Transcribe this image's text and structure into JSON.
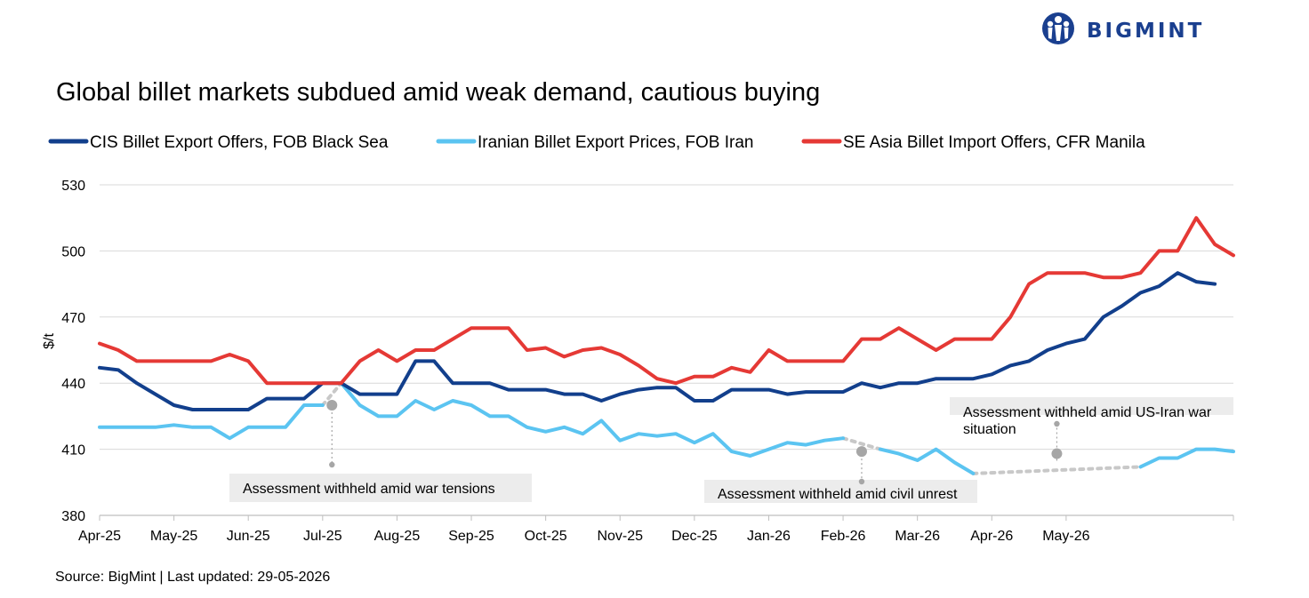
{
  "brand": {
    "name": "BIGMINT",
    "color": "#1a3f8f",
    "logo_icon": "bigmint-people-logo-icon"
  },
  "footer": {
    "source": "Source: BigMint | Last updated: 29-05-2026"
  },
  "chart_data": {
    "type": "line",
    "title": "Global billet markets subdued amid weak demand, cautious buying",
    "ylabel": "$/t",
    "xlabel": "",
    "ylim": [
      380,
      530
    ],
    "yticks": [
      380,
      410,
      440,
      470,
      500,
      530
    ],
    "grid": "horizontal",
    "legend_position": "top-left",
    "x_tick_labels": [
      "Apr-25",
      "May-25",
      "Jun-25",
      "Jul-25",
      "Aug-25",
      "Sep-25",
      "Oct-25",
      "Nov-25",
      "Dec-25",
      "Jan-26",
      "Feb-26",
      "Mar-26",
      "Apr-26",
      "May-26"
    ],
    "x_tick_index": [
      0,
      4,
      8,
      12,
      16,
      20,
      24,
      28,
      32,
      36,
      40,
      44,
      48,
      52
    ],
    "series": [
      {
        "name": "CIS Billet Export Offers, FOB Black Sea",
        "color": "#123f8c",
        "points": [
          [
            0,
            447
          ],
          [
            1,
            446
          ],
          [
            2,
            440
          ],
          [
            3,
            435
          ],
          [
            4,
            430
          ],
          [
            5,
            428
          ],
          [
            6,
            428
          ],
          [
            7,
            428
          ],
          [
            8,
            428
          ],
          [
            9,
            433
          ],
          [
            10,
            433
          ],
          [
            11,
            433
          ],
          [
            12,
            440
          ],
          [
            13,
            440
          ],
          [
            14,
            435
          ],
          [
            15,
            435
          ],
          [
            16,
            435
          ],
          [
            17,
            450
          ],
          [
            18,
            450
          ],
          [
            19,
            440
          ],
          [
            20,
            440
          ],
          [
            21,
            440
          ],
          [
            22,
            437
          ],
          [
            23,
            437
          ],
          [
            24,
            437
          ],
          [
            25,
            435
          ],
          [
            26,
            435
          ],
          [
            27,
            432
          ],
          [
            28,
            435
          ],
          [
            29,
            437
          ],
          [
            30,
            438
          ],
          [
            31,
            438
          ],
          [
            32,
            432
          ],
          [
            33,
            432
          ],
          [
            34,
            437
          ],
          [
            35,
            437
          ],
          [
            36,
            437
          ],
          [
            37,
            435
          ],
          [
            38,
            436
          ],
          [
            39,
            436
          ],
          [
            40,
            436
          ],
          [
            41,
            440
          ],
          [
            42,
            438
          ],
          [
            43,
            440
          ],
          [
            44,
            440
          ],
          [
            45,
            442
          ],
          [
            46,
            442
          ],
          [
            47,
            442
          ],
          [
            48,
            444
          ],
          [
            49,
            448
          ],
          [
            50,
            450
          ],
          [
            51,
            455
          ],
          [
            52,
            458
          ],
          [
            53,
            460
          ],
          [
            54,
            470
          ],
          [
            55,
            475
          ],
          [
            56,
            481
          ],
          [
            57,
            484
          ],
          [
            58,
            490
          ],
          [
            59,
            486
          ],
          [
            60,
            485
          ]
        ]
      },
      {
        "name": "Iranian Billet Export Prices, FOB Iran",
        "color": "#5bc4f1",
        "segments": [
          [
            [
              0,
              420
            ],
            [
              1,
              420
            ],
            [
              2,
              420
            ],
            [
              3,
              420
            ],
            [
              4,
              421
            ],
            [
              5,
              420
            ],
            [
              6,
              420
            ],
            [
              7,
              415
            ],
            [
              8,
              420
            ],
            [
              9,
              420
            ],
            [
              10,
              420
            ],
            [
              11,
              430
            ],
            [
              12,
              430
            ]
          ],
          [
            [
              13,
              440
            ],
            [
              14,
              430
            ],
            [
              15,
              425
            ],
            [
              16,
              425
            ],
            [
              17,
              432
            ],
            [
              18,
              428
            ],
            [
              19,
              432
            ],
            [
              20,
              430
            ],
            [
              21,
              425
            ],
            [
              22,
              425
            ],
            [
              23,
              420
            ],
            [
              24,
              418
            ],
            [
              25,
              420
            ],
            [
              26,
              417
            ],
            [
              27,
              423
            ],
            [
              28,
              414
            ],
            [
              29,
              417
            ],
            [
              30,
              416
            ],
            [
              31,
              417
            ],
            [
              32,
              413
            ],
            [
              33,
              417
            ],
            [
              34,
              409
            ],
            [
              35,
              407
            ],
            [
              36,
              410
            ],
            [
              37,
              413
            ],
            [
              38,
              412
            ],
            [
              39,
              414
            ],
            [
              40,
              415
            ]
          ],
          [
            [
              42,
              410
            ],
            [
              43,
              408
            ],
            [
              44,
              405
            ],
            [
              45,
              410
            ],
            [
              46,
              404
            ],
            [
              47,
              399
            ]
          ],
          [
            [
              56,
              402
            ],
            [
              57,
              406
            ],
            [
              58,
              406
            ],
            [
              59,
              410
            ],
            [
              60,
              410
            ],
            [
              61,
              409
            ]
          ]
        ],
        "dotted_gaps": [
          [
            [
              12,
              430
            ],
            [
              13,
              440
            ]
          ],
          [
            [
              40,
              415
            ],
            [
              42,
              410
            ]
          ],
          [
            [
              47,
              399
            ],
            [
              56,
              402
            ]
          ]
        ]
      },
      {
        "name": "SE Asia Billet Import Offers, CFR Manila",
        "color": "#e53935",
        "points": [
          [
            0,
            458
          ],
          [
            1,
            455
          ],
          [
            2,
            450
          ],
          [
            3,
            450
          ],
          [
            4,
            450
          ],
          [
            5,
            450
          ],
          [
            6,
            450
          ],
          [
            7,
            453
          ],
          [
            8,
            450
          ],
          [
            9,
            440
          ],
          [
            10,
            440
          ],
          [
            11,
            440
          ],
          [
            12,
            440
          ],
          [
            13,
            440
          ],
          [
            14,
            450
          ],
          [
            15,
            455
          ],
          [
            16,
            450
          ],
          [
            17,
            455
          ],
          [
            18,
            455
          ],
          [
            19,
            460
          ],
          [
            20,
            465
          ],
          [
            21,
            465
          ],
          [
            22,
            465
          ],
          [
            23,
            455
          ],
          [
            24,
            456
          ],
          [
            25,
            452
          ],
          [
            26,
            455
          ],
          [
            27,
            456
          ],
          [
            28,
            453
          ],
          [
            29,
            448
          ],
          [
            30,
            442
          ],
          [
            31,
            440
          ],
          [
            32,
            443
          ],
          [
            33,
            443
          ],
          [
            34,
            447
          ],
          [
            35,
            445
          ],
          [
            36,
            455
          ],
          [
            37,
            450
          ],
          [
            38,
            450
          ],
          [
            39,
            450
          ],
          [
            40,
            450
          ],
          [
            41,
            460
          ],
          [
            42,
            460
          ],
          [
            43,
            465
          ],
          [
            44,
            460
          ],
          [
            45,
            455
          ],
          [
            46,
            460
          ],
          [
            47,
            460
          ],
          [
            48,
            460
          ],
          [
            49,
            470
          ],
          [
            50,
            485
          ],
          [
            51,
            490
          ],
          [
            52,
            490
          ],
          [
            53,
            490
          ],
          [
            54,
            488
          ],
          [
            55,
            488
          ],
          [
            56,
            490
          ],
          [
            57,
            500
          ],
          [
            58,
            500
          ],
          [
            59,
            515
          ],
          [
            60,
            503
          ],
          [
            61,
            498
          ]
        ]
      }
    ],
    "annotations": [
      {
        "text": "Assessment withheld amid  war tensions",
        "anchor": [
          12.5,
          430
        ]
      },
      {
        "text": "Assessment withheld amid civil unrest",
        "anchor": [
          41,
          409
        ]
      },
      {
        "text_lines": [
          "Assessment withheld amid US-Iran war",
          "situation"
        ],
        "anchor": [
          51.5,
          408
        ]
      }
    ]
  }
}
